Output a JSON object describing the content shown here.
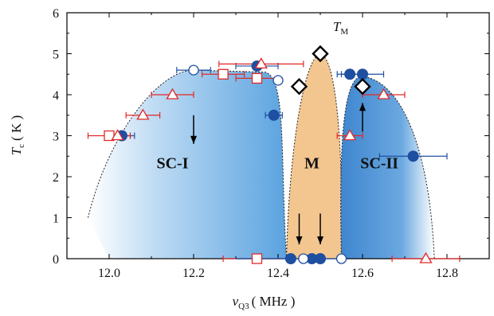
{
  "chart_data": {
    "type": "scatter",
    "xlabel": {
      "symbol": "ν",
      "sub": "Q3",
      "unit": "( MHz )"
    },
    "ylabel": {
      "symbol": "T",
      "sub": "c",
      "unit": "( K )"
    },
    "xlim": [
      11.9,
      12.9
    ],
    "ylim": [
      0,
      6
    ],
    "xticks": [
      "12.0",
      "12.2",
      "12.4",
      "12.6",
      "12.8"
    ],
    "xtick_values": [
      12.0,
      12.2,
      12.4,
      12.6,
      12.8
    ],
    "yticks": [
      "0",
      "1",
      "2",
      "3",
      "4",
      "5",
      "6"
    ],
    "ytick_values": [
      0,
      1,
      2,
      3,
      4,
      5,
      6
    ],
    "grid": false,
    "regions": [
      {
        "label": "SC-I",
        "label_at": [
          12.15,
          2.2
        ],
        "color": "#5ba3e0"
      },
      {
        "label": "M",
        "label_at": [
          12.48,
          2.2
        ],
        "color": "#f3c690"
      },
      {
        "label": "SC-II",
        "label_at": [
          12.64,
          2.2
        ],
        "color": "#4a8fd4"
      }
    ],
    "annotation": {
      "symbol": "T",
      "sub": "M",
      "x": 12.53,
      "y": 5.55
    },
    "colors": {
      "blue": "#1f4fa0",
      "red": "#e02828",
      "black": "#000000",
      "dome_sc1": "#5ba3e0",
      "dome_sc2": "#3f86cf",
      "dome_m": "#f3c690"
    },
    "series": [
      {
        "marker": "filled-circle",
        "color": "#1f4fa0",
        "points": [
          {
            "x": 12.03,
            "y": 3.0,
            "xerr": 0.03
          },
          {
            "x": 12.35,
            "y": 4.7,
            "xerr": 0.05
          },
          {
            "x": 12.39,
            "y": 3.5,
            "xerr": 0.02
          },
          {
            "x": 12.57,
            "y": 4.5,
            "xerr": 0.03
          },
          {
            "x": 12.6,
            "y": 4.5,
            "xerr": 0.05
          },
          {
            "x": 12.72,
            "y": 2.5,
            "xerr": 0.08
          },
          {
            "x": 12.43,
            "y": 0.0,
            "xerr": 0
          },
          {
            "x": 12.48,
            "y": 0.0,
            "xerr": 0
          },
          {
            "x": 12.5,
            "y": 0.0,
            "xerr": 0
          }
        ]
      },
      {
        "marker": "open-circle",
        "color": "#1f4fa0",
        "points": [
          {
            "x": 12.2,
            "y": 4.6,
            "xerr": 0.04
          },
          {
            "x": 12.4,
            "y": 4.35,
            "xerr": 0
          },
          {
            "x": 12.46,
            "y": 0.0,
            "xerr": 0.04
          },
          {
            "x": 12.55,
            "y": 0.0,
            "xerr": 0
          }
        ]
      },
      {
        "marker": "open-square",
        "color": "#e02828",
        "points": [
          {
            "x": 12.0,
            "y": 3.0,
            "xerr": 0.05
          },
          {
            "x": 12.27,
            "y": 4.5,
            "xerr": 0.05
          },
          {
            "x": 12.35,
            "y": 4.4,
            "xerr": 0.05
          },
          {
            "x": 12.35,
            "y": 0.0,
            "xerr": 0.08
          }
        ]
      },
      {
        "marker": "open-triangle",
        "color": "#e02828",
        "points": [
          {
            "x": 12.02,
            "y": 3.0,
            "xerr": 0.03
          },
          {
            "x": 12.08,
            "y": 3.5,
            "xerr": 0.04
          },
          {
            "x": 12.15,
            "y": 4.0,
            "xerr": 0.05
          },
          {
            "x": 12.36,
            "y": 4.75,
            "xerr": 0.1
          },
          {
            "x": 12.57,
            "y": 3.0,
            "xerr": 0.03
          },
          {
            "x": 12.65,
            "y": 4.0,
            "xerr": 0.05
          },
          {
            "x": 12.75,
            "y": 0.0,
            "xerr": 0.08
          }
        ]
      },
      {
        "marker": "open-diamond",
        "color": "#000000",
        "points": [
          {
            "x": 12.45,
            "y": 4.2
          },
          {
            "x": 12.5,
            "y": 5.0
          },
          {
            "x": 12.6,
            "y": 4.2
          }
        ]
      }
    ],
    "arrows": [
      {
        "x": 12.2,
        "y_from": 3.5,
        "y_to": 2.8
      },
      {
        "x": 12.6,
        "y_from": 3.1,
        "y_to": 3.8
      },
      {
        "x": 12.45,
        "y_from": 1.1,
        "y_to": 0.35
      },
      {
        "x": 12.5,
        "y_from": 1.1,
        "y_to": 0.35
      }
    ]
  }
}
